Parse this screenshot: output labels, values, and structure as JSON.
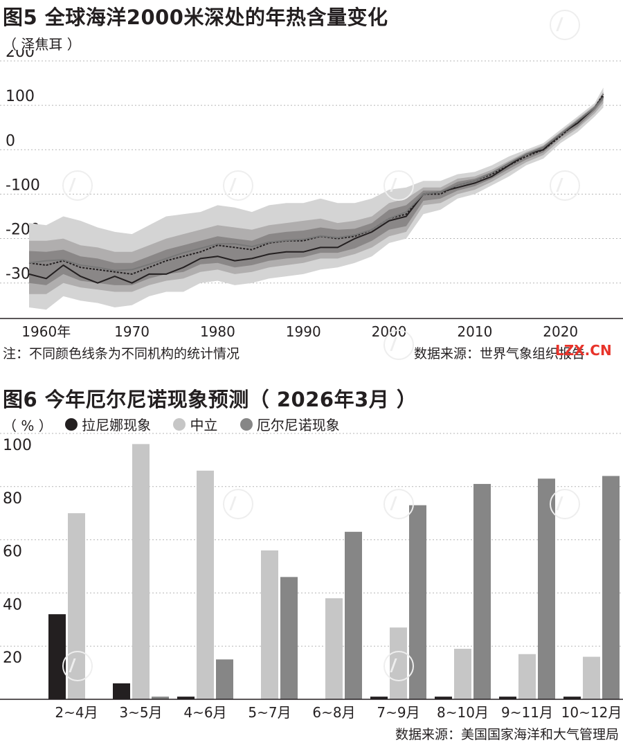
{
  "chart1": {
    "title": "图5 全球海洋2000米深处的年热含量变化",
    "unit": "（ 泽焦耳 ）",
    "note": "注：不同颜色线条为不同机构的统计情况",
    "source": "数据来源：世界气象组织报告",
    "stamp": "LZX.CN"
  },
  "chart2": {
    "title": "图6 今年厄尔尼诺现象预测（ 2026年3月 ）",
    "unit": "（ % ）",
    "source": "数据来源：美国国家海洋和大气管理局",
    "legend": [
      {
        "label": "拉尼娜现象",
        "color": "#231f20"
      },
      {
        "label": "中立",
        "color": "#c6c6c6"
      },
      {
        "label": "厄尔尼诺现象",
        "color": "#868686"
      }
    ]
  },
  "chart_data": [
    {
      "type": "area",
      "title": "图5 全球海洋2000米深处的年热含量变化",
      "ylabel": "泽焦耳",
      "xlabel": "",
      "ylim": [
        -380,
        200
      ],
      "xlim": [
        1958,
        2026
      ],
      "yticks": [
        200,
        100,
        0,
        -100,
        -200,
        -300
      ],
      "xticks": [
        {
          "x": 1960,
          "label": "1960年"
        },
        {
          "x": 1970,
          "label": "1970"
        },
        {
          "x": 1980,
          "label": "1980"
        },
        {
          "x": 1990,
          "label": "1990"
        },
        {
          "x": 2000,
          "label": "2000"
        },
        {
          "x": 2010,
          "label": "2010"
        },
        {
          "x": 2020,
          "label": "2020"
        }
      ],
      "grid": true,
      "x": [
        1958,
        1960,
        1962,
        1964,
        1966,
        1968,
        1970,
        1972,
        1974,
        1976,
        1978,
        1980,
        1982,
        1984,
        1986,
        1988,
        1990,
        1992,
        1994,
        1996,
        1998,
        2000,
        2002,
        2004,
        2006,
        2008,
        2010,
        2012,
        2014,
        2016,
        2018,
        2020,
        2022,
        2024,
        2025
      ],
      "series": [
        {
          "style": "solid",
          "color": "#231f20",
          "values": [
            -280,
            -290,
            -260,
            -285,
            -300,
            -285,
            -300,
            -280,
            -280,
            -265,
            -245,
            -240,
            -250,
            -245,
            -235,
            -230,
            -230,
            -220,
            -220,
            -200,
            -185,
            -160,
            -150,
            -100,
            -95,
            -85,
            -75,
            -60,
            -35,
            -10,
            0,
            35,
            60,
            95,
            120
          ]
        },
        {
          "style": "dashed",
          "color": "#231f20",
          "values": [
            -255,
            -260,
            -250,
            -265,
            -270,
            -275,
            -280,
            -265,
            -250,
            -240,
            -230,
            -215,
            -220,
            -225,
            -210,
            -205,
            -205,
            -195,
            -200,
            -195,
            -180,
            -155,
            -145,
            -100,
            -100,
            -80,
            -70,
            -55,
            -35,
            -15,
            0,
            30,
            65,
            95,
            125
          ]
        },
        {
          "style": "solid",
          "color": "#777777",
          "values": [
            -255,
            -250,
            -248,
            -260,
            -265,
            -272,
            -270,
            -258,
            -245,
            -232,
            -222,
            -212,
            -212,
            -218,
            -208,
            -204,
            -202,
            -194,
            -198,
            -192,
            -180,
            -155,
            -140,
            -100,
            -95,
            -80,
            -70,
            -52,
            -30,
            -10,
            5,
            35,
            65,
            95,
            118
          ]
        }
      ],
      "bands": [
        {
          "color": "#d4d4d4",
          "upper": [
            -165,
            -170,
            -150,
            -160,
            -175,
            -185,
            -190,
            -170,
            -150,
            -145,
            -140,
            -125,
            -130,
            -140,
            -125,
            -120,
            -120,
            -110,
            -120,
            -120,
            -110,
            -90,
            -85,
            -70,
            -70,
            -55,
            -50,
            -35,
            -15,
            0,
            15,
            45,
            75,
            105,
            140
          ],
          "lower": [
            -355,
            -360,
            -330,
            -340,
            -345,
            -355,
            -350,
            -330,
            -320,
            -320,
            -300,
            -295,
            -305,
            -300,
            -290,
            -285,
            -280,
            -270,
            -265,
            -255,
            -240,
            -210,
            -200,
            -145,
            -135,
            -110,
            -100,
            -80,
            -60,
            -35,
            -20,
            15,
            40,
            75,
            95
          ]
        },
        {
          "color": "#b0aeae",
          "upper": [
            -205,
            -205,
            -200,
            -215,
            -220,
            -230,
            -230,
            -215,
            -200,
            -190,
            -180,
            -170,
            -175,
            -180,
            -170,
            -165,
            -160,
            -155,
            -165,
            -160,
            -150,
            -120,
            -110,
            -85,
            -85,
            -65,
            -60,
            -45,
            -25,
            -5,
            10,
            40,
            70,
            100,
            130
          ],
          "lower": [
            -325,
            -325,
            -300,
            -310,
            -315,
            -320,
            -320,
            -305,
            -295,
            -290,
            -275,
            -270,
            -280,
            -275,
            -265,
            -260,
            -255,
            -245,
            -245,
            -235,
            -220,
            -195,
            -185,
            -125,
            -120,
            -100,
            -90,
            -72,
            -50,
            -28,
            -12,
            22,
            48,
            82,
            105
          ]
        },
        {
          "color": "#8a8787",
          "upper": [
            -228,
            -230,
            -225,
            -240,
            -245,
            -255,
            -255,
            -240,
            -225,
            -215,
            -205,
            -195,
            -200,
            -205,
            -190,
            -185,
            -182,
            -175,
            -180,
            -178,
            -165,
            -135,
            -125,
            -92,
            -92,
            -72,
            -65,
            -50,
            -30,
            -8,
            8,
            38,
            67,
            98,
            128
          ],
          "lower": [
            -300,
            -305,
            -280,
            -295,
            -300,
            -305,
            -305,
            -290,
            -280,
            -275,
            -258,
            -255,
            -265,
            -260,
            -250,
            -245,
            -242,
            -232,
            -232,
            -222,
            -205,
            -180,
            -172,
            -115,
            -110,
            -92,
            -82,
            -65,
            -43,
            -22,
            -6,
            28,
            52,
            88,
            112
          ]
        }
      ]
    },
    {
      "type": "bar",
      "title": "图6 今年厄尔尼诺现象预测（ 2026年3月 ）",
      "ylabel": "%",
      "xlabel": "",
      "ylim": [
        0,
        100
      ],
      "yticks": [
        100,
        80,
        60,
        40,
        20
      ],
      "grid": true,
      "legend_position": "top-left",
      "categories": [
        "2~4月",
        "3~5月",
        "4~6月",
        "5~7月",
        "6~8月",
        "7~9月",
        "8~10月",
        "9~11月",
        "10~12月"
      ],
      "series": [
        {
          "name": "拉尼娜现象",
          "color": "#231f20",
          "values": [
            32,
            6,
            1,
            0,
            0,
            1,
            1,
            1,
            1
          ]
        },
        {
          "name": "中立",
          "color": "#c6c6c6",
          "values": [
            70,
            96,
            86,
            56,
            38,
            27,
            19,
            17,
            16
          ]
        },
        {
          "name": "厄尔尼诺现象",
          "color": "#868686",
          "values": [
            0,
            1,
            15,
            46,
            63,
            73,
            81,
            83,
            84
          ]
        }
      ]
    }
  ]
}
